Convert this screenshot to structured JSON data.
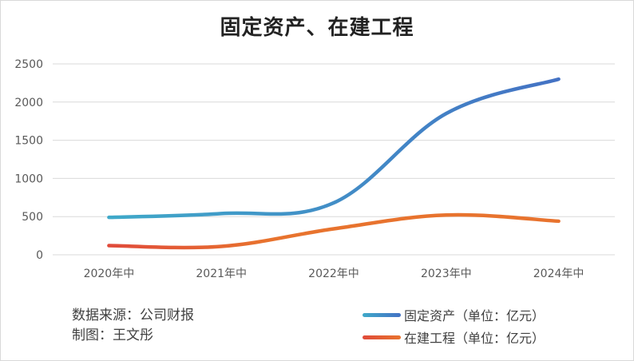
{
  "chart_data": {
    "type": "line",
    "title": "固定资产、在建工程",
    "categories": [
      "2020年中",
      "2021年中",
      "2022年中",
      "2023年中",
      "2024年中"
    ],
    "ylim": [
      0,
      2500
    ],
    "yticks": [
      0,
      500,
      1000,
      1500,
      2000,
      2500
    ],
    "grid": true,
    "legend_position": "bottom-right",
    "series": [
      {
        "name": "固定资产（单位：亿元）",
        "values": [
          490,
          540,
          680,
          1850,
          2300
        ],
        "color": "#3fa9c9",
        "color_end": "#4472c4"
      },
      {
        "name": "在建工程（单位：亿元）",
        "values": [
          120,
          110,
          340,
          520,
          440
        ],
        "color": "#e8732e",
        "color_start": "#e04a3a"
      }
    ]
  },
  "footer": {
    "source": "数据来源：公司财报",
    "author": "制图：王文彤"
  }
}
